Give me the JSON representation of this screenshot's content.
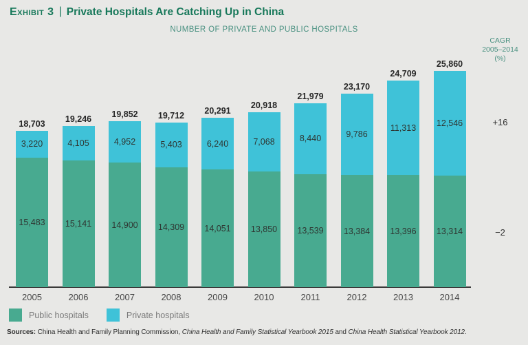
{
  "header": {
    "exhibit": "Exhibit 3",
    "separator": "|",
    "title": "Private Hospitals Are Catching Up in China",
    "subtitle": "NUMBER OF PRIVATE AND PUBLIC HOSPITALS"
  },
  "cagr": {
    "line1": "CAGR",
    "line2": "2005–2014",
    "line3": "(%)",
    "private_value": "+16",
    "public_value": "−2"
  },
  "legend": {
    "public": "Public hospitals",
    "private": "Private hospitals"
  },
  "sources": {
    "label": "Sources:",
    "part1": " China Health and Family Planning Commission, ",
    "italic1": "China Health and Family Statistical Yearbook 2015",
    "part2": " and ",
    "italic2": "China Health Statistical Yearbook 2012",
    "part3": "."
  },
  "colors": {
    "background": "#e8e8e6",
    "public_green": "#48aa90",
    "private_cyan": "#3fc2d8",
    "title_green": "#17785a",
    "subtitle_teal": "#4a9181",
    "axis": "#3a3a3a",
    "dark_text": "#2f2f2f",
    "legend_text": "#7a7a7a"
  },
  "chart_data": {
    "type": "bar",
    "stacked": true,
    "title": "Exhibit 3 | Private Hospitals Are Catching Up in China",
    "subtitle": "NUMBER OF PRIVATE AND PUBLIC HOSPITALS",
    "categories": [
      "2005",
      "2006",
      "2007",
      "2008",
      "2009",
      "2010",
      "2011",
      "2012",
      "2013",
      "2014"
    ],
    "series": [
      {
        "name": "Public hospitals",
        "color": "#48aa90",
        "values": [
          15483,
          15141,
          14900,
          14309,
          14051,
          13850,
          13539,
          13384,
          13396,
          13314
        ]
      },
      {
        "name": "Private hospitals",
        "color": "#3fc2d8",
        "values": [
          3220,
          4105,
          4952,
          5403,
          6240,
          7068,
          8440,
          9786,
          11313,
          12546
        ]
      }
    ],
    "totals": [
      18703,
      19246,
      19852,
      19712,
      20291,
      20918,
      21979,
      23170,
      24709,
      25860
    ],
    "cagr_2005_2014_pct": {
      "Private hospitals": "+16",
      "Public hospitals": "−2"
    },
    "ylim": [
      0,
      26000
    ],
    "grid": false,
    "legend_position": "bottom-left",
    "value_labels": "inside-segments-plus-total-above"
  }
}
